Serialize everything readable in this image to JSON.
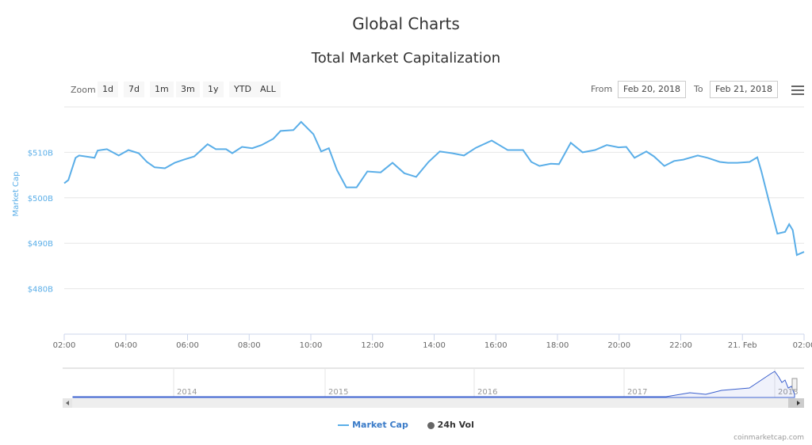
{
  "header": {
    "title": "Global Charts",
    "subtitle": "Total Market Capitalization"
  },
  "toolbar": {
    "zoom_label": "Zoom",
    "zoom_buttons": [
      "1d",
      "7d",
      "1m",
      "3m",
      "1y",
      "YTD",
      "ALL"
    ],
    "from_label": "From",
    "from_value": "Feb 20, 2018",
    "to_label": "To",
    "to_value": "Feb 21, 2018",
    "menu_icon": "hamburger-menu-icon"
  },
  "legend": {
    "market_cap": "Market Cap",
    "vol": "24h Vol"
  },
  "credit": "coinmarketcap.com",
  "colors": {
    "line": "#5aaee8",
    "axis_label": "#5aaee8",
    "navigator": "#3a5fcd",
    "vol": "#666666"
  },
  "chart_data": {
    "type": "line",
    "title": "Total Market Capitalization",
    "ylabel": "Market Cap",
    "ylim": [
      470,
      520
    ],
    "yticks": [
      480,
      490,
      500,
      510
    ],
    "ytick_labels": [
      "$480B",
      "$490B",
      "$500B",
      "$510B"
    ],
    "xlim": [
      "2018-02-20 02:00",
      "2018-02-21 02:00"
    ],
    "xtick_labels": [
      "02:00",
      "04:00",
      "06:00",
      "08:00",
      "10:00",
      "12:00",
      "14:00",
      "16:00",
      "18:00",
      "20:00",
      "22:00",
      "21. Feb",
      "02:00"
    ],
    "grid": true,
    "legend_position": "bottom",
    "series": [
      {
        "name": "Market Cap",
        "unit": "B USD",
        "points": [
          [
            "2018-02-20 02:00",
            503.2
          ],
          [
            "2018-02-20 02:08",
            503.9
          ],
          [
            "2018-02-20 02:22",
            508.8
          ],
          [
            "2018-02-20 02:29",
            509.3
          ],
          [
            "2018-02-20 02:59",
            508.8
          ],
          [
            "2018-02-20 03:05",
            510.4
          ],
          [
            "2018-02-20 03:23",
            510.7
          ],
          [
            "2018-02-20 03:46",
            509.3
          ],
          [
            "2018-02-20 04:05",
            510.5
          ],
          [
            "2018-02-20 04:25",
            509.8
          ],
          [
            "2018-02-20 04:41",
            507.9
          ],
          [
            "2018-02-20 04:56",
            506.7
          ],
          [
            "2018-02-20 05:16",
            506.5
          ],
          [
            "2018-02-20 05:35",
            507.7
          ],
          [
            "2018-02-20 05:53",
            508.4
          ],
          [
            "2018-02-20 06:13",
            509.1
          ],
          [
            "2018-02-20 06:39",
            511.8
          ],
          [
            "2018-02-20 06:55",
            510.7
          ],
          [
            "2018-02-20 07:15",
            510.7
          ],
          [
            "2018-02-20 07:27",
            509.8
          ],
          [
            "2018-02-20 07:46",
            511.2
          ],
          [
            "2018-02-20 08:06",
            510.9
          ],
          [
            "2018-02-20 08:24",
            511.6
          ],
          [
            "2018-02-20 08:47",
            513.0
          ],
          [
            "2018-02-20 09:01",
            514.7
          ],
          [
            "2018-02-20 09:26",
            514.9
          ],
          [
            "2018-02-20 09:41",
            516.7
          ],
          [
            "2018-02-20 10:05",
            514.0
          ],
          [
            "2018-02-20 10:20",
            510.2
          ],
          [
            "2018-02-20 10:35",
            510.9
          ],
          [
            "2018-02-20 10:51",
            506.1
          ],
          [
            "2018-02-20 11:09",
            502.3
          ],
          [
            "2018-02-20 11:29",
            502.3
          ],
          [
            "2018-02-20 11:50",
            505.8
          ],
          [
            "2018-02-20 12:16",
            505.6
          ],
          [
            "2018-02-20 12:39",
            507.7
          ],
          [
            "2018-02-20 13:02",
            505.4
          ],
          [
            "2018-02-20 13:25",
            504.6
          ],
          [
            "2018-02-20 13:49",
            507.9
          ],
          [
            "2018-02-20 14:11",
            510.2
          ],
          [
            "2018-02-20 14:35",
            509.8
          ],
          [
            "2018-02-20 14:58",
            509.3
          ],
          [
            "2018-02-20 15:21",
            511.0
          ],
          [
            "2018-02-20 15:52",
            512.6
          ],
          [
            "2018-02-20 16:23",
            510.5
          ],
          [
            "2018-02-20 16:53",
            510.5
          ],
          [
            "2018-02-20 17:09",
            507.9
          ],
          [
            "2018-02-20 17:25",
            507.0
          ],
          [
            "2018-02-20 17:47",
            507.5
          ],
          [
            "2018-02-20 18:03",
            507.4
          ],
          [
            "2018-02-20 18:26",
            512.1
          ],
          [
            "2018-02-20 18:49",
            510.0
          ],
          [
            "2018-02-20 19:13",
            510.5
          ],
          [
            "2018-02-20 19:36",
            511.6
          ],
          [
            "2018-02-20 19:59",
            511.1
          ],
          [
            "2018-02-20 20:14",
            511.2
          ],
          [
            "2018-02-20 20:30",
            508.8
          ],
          [
            "2018-02-20 20:53",
            510.2
          ],
          [
            "2018-02-20 21:08",
            509.1
          ],
          [
            "2018-02-20 21:28",
            507.0
          ],
          [
            "2018-02-20 21:47",
            508.1
          ],
          [
            "2018-02-20 22:05",
            508.4
          ],
          [
            "2018-02-20 22:33",
            509.3
          ],
          [
            "2018-02-20 22:52",
            508.8
          ],
          [
            "2018-02-20 23:16",
            507.9
          ],
          [
            "2018-02-20 23:32",
            507.7
          ],
          [
            "2018-02-20 23:50",
            507.7
          ],
          [
            "2018-02-21 00:14",
            507.9
          ],
          [
            "2018-02-21 00:29",
            508.9
          ],
          [
            "2018-02-21 00:37",
            505.8
          ],
          [
            "2018-02-21 00:52",
            499.1
          ],
          [
            "2018-02-21 01:08",
            492.1
          ],
          [
            "2018-02-21 01:23",
            492.5
          ],
          [
            "2018-02-21 01:31",
            494.2
          ],
          [
            "2018-02-21 01:38",
            492.9
          ],
          [
            "2018-02-21 01:46",
            487.4
          ],
          [
            "2018-02-21 02:00",
            488.1
          ]
        ]
      }
    ],
    "navigator": {
      "xtick_labels": [
        "2014",
        "2015",
        "2016",
        "2017",
        "2018"
      ]
    }
  }
}
